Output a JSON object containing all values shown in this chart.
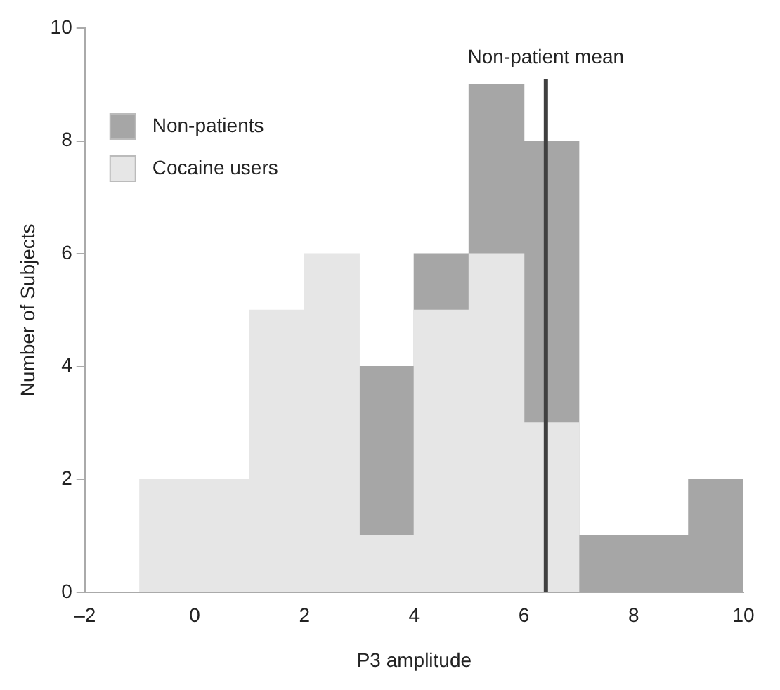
{
  "chart_data": {
    "type": "histogram",
    "xlabel": "P3 amplitude",
    "ylabel": "Number of Subjects",
    "bins": [
      -1,
      0,
      1,
      2,
      3,
      4,
      5,
      6,
      7,
      8,
      9,
      10
    ],
    "series": [
      {
        "name": "Non-patients",
        "color": "#a6a6a6",
        "values": [
          null,
          null,
          null,
          null,
          4,
          6,
          9,
          8,
          1,
          1,
          2
        ]
      },
      {
        "name": "Cocaine users",
        "color": "#e6e6e6",
        "values": [
          2,
          2,
          5,
          6,
          1,
          5,
          6,
          3,
          0,
          0,
          0
        ]
      }
    ],
    "xlim": [
      -2,
      10
    ],
    "xticks": [
      {
        "value": -2,
        "label": "–2"
      },
      0,
      2,
      4,
      6,
      8,
      10
    ],
    "ylim": [
      0,
      10
    ],
    "yticks": [
      0,
      2,
      4,
      6,
      8,
      10
    ],
    "ref_lines": [
      {
        "axis": "x",
        "value": 6.4,
        "label": "Non-patient mean",
        "color": "#404040"
      }
    ],
    "legend": "top left",
    "grid": false
  }
}
